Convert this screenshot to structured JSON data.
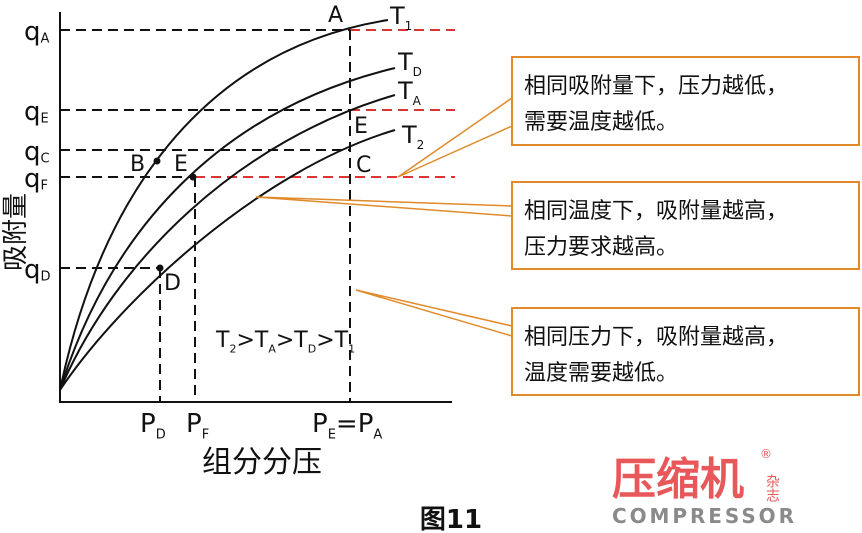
{
  "y_axis": {
    "label": "吸附量",
    "ticks": [
      {
        "parts": [
          {
            "text": "q"
          },
          {
            "text": "A",
            "sub": true
          }
        ]
      },
      {
        "parts": [
          {
            "text": "q"
          },
          {
            "text": "E",
            "sub": true
          }
        ]
      },
      {
        "parts": [
          {
            "text": "q"
          },
          {
            "text": "C",
            "sub": true
          }
        ]
      },
      {
        "parts": [
          {
            "text": "q"
          },
          {
            "text": "F",
            "sub": true
          }
        ]
      },
      {
        "parts": [
          {
            "text": "q"
          },
          {
            "text": "D",
            "sub": true
          }
        ]
      }
    ]
  },
  "x_axis": {
    "label": "组分分压",
    "ticks": [
      {
        "parts": [
          {
            "text": "P"
          },
          {
            "text": "D",
            "sub": true
          }
        ]
      },
      {
        "parts": [
          {
            "text": "P"
          },
          {
            "text": "F",
            "sub": true
          }
        ]
      },
      {
        "parts": [
          {
            "text": "P"
          },
          {
            "text": "E",
            "sub": true
          },
          {
            "text": "=P"
          },
          {
            "text": "A",
            "sub": true
          }
        ]
      }
    ]
  },
  "curves": [
    {
      "parts": [
        {
          "text": "T"
        },
        {
          "text": "1",
          "sub": true
        }
      ]
    },
    {
      "parts": [
        {
          "text": "T"
        },
        {
          "text": "D",
          "sub": true
        }
      ]
    },
    {
      "parts": [
        {
          "text": "T"
        },
        {
          "text": "A",
          "sub": true
        }
      ]
    },
    {
      "parts": [
        {
          "text": "T"
        },
        {
          "text": "2",
          "sub": true
        }
      ]
    }
  ],
  "points": [
    "A",
    "B",
    "E",
    "E",
    "C",
    "D"
  ],
  "relation": {
    "parts": [
      {
        "text": "T"
      },
      {
        "text": "2",
        "sub": true
      },
      {
        "text": ">T"
      },
      {
        "text": "A",
        "sub": true
      },
      {
        "text": ">T"
      },
      {
        "text": "D",
        "sub": true
      },
      {
        "text": ">T"
      },
      {
        "text": "1",
        "sub": true
      }
    ]
  },
  "callouts": [
    {
      "lines": [
        "相同吸附量下，压力越低，",
        "需要温度越低。"
      ]
    },
    {
      "lines": [
        "相同温度下，吸附量越高，",
        "压力要求越高。"
      ]
    },
    {
      "lines": [
        "相同压力下，吸附量越高，",
        "温度需要越低。"
      ]
    }
  ],
  "caption": "图11",
  "logo": {
    "name": "压缩机",
    "magazine": "杂志",
    "english": "COMPRESSOR",
    "mark": "®"
  }
}
